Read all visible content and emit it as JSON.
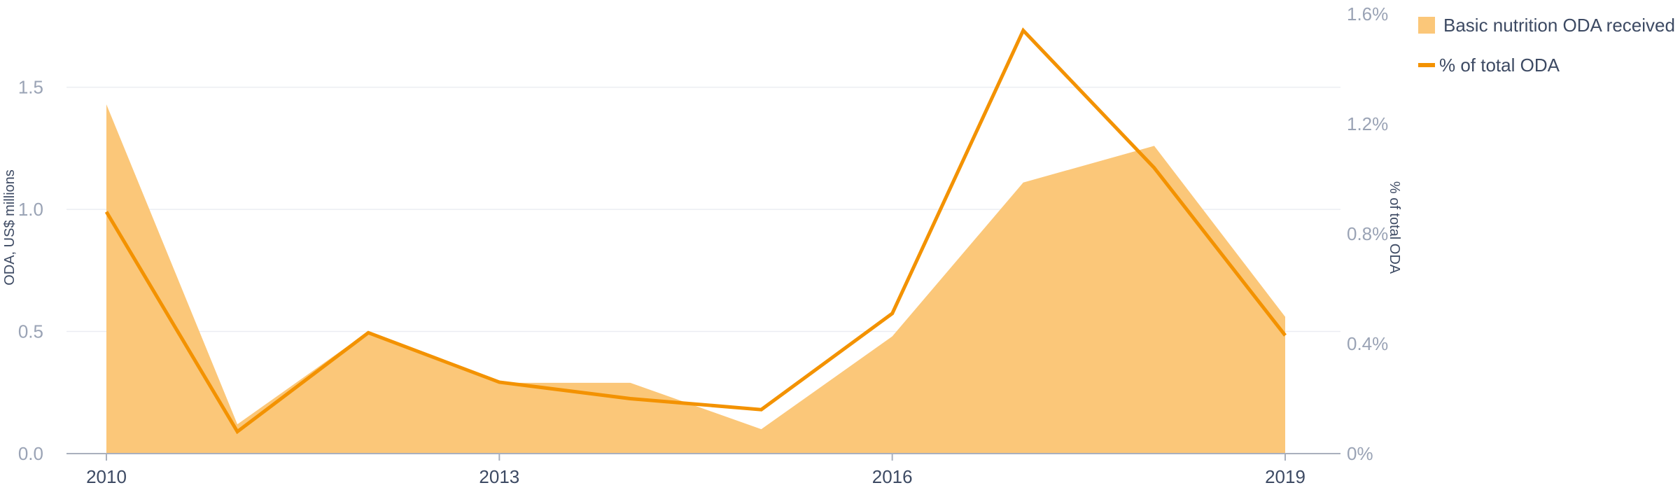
{
  "chart_data": {
    "type": "area+line",
    "x": [
      2010,
      2011,
      2012,
      2013,
      2014,
      2015,
      2016,
      2017,
      2018,
      2019
    ],
    "series": [
      {
        "name": "Basic nutrition ODA received",
        "kind": "area",
        "axis": "left",
        "color": "#fbc779",
        "values": [
          1.43,
          0.12,
          0.5,
          0.29,
          0.29,
          0.1,
          0.48,
          1.11,
          1.26,
          0.56
        ]
      },
      {
        "name": "% of total ODA",
        "kind": "line",
        "axis": "right",
        "color": "#f39200",
        "values": [
          0.88,
          0.08,
          0.44,
          0.26,
          0.2,
          0.16,
          0.51,
          1.54,
          1.04,
          0.43
        ]
      }
    ],
    "y_left": {
      "label": "ODA, US$ millions",
      "lim": [
        0,
        1.8
      ],
      "ticks": [
        0.0,
        0.5,
        1.0,
        1.5
      ],
      "tick_labels": [
        "0.0",
        "0.5",
        "1.0",
        "1.5"
      ]
    },
    "y_right": {
      "label": "% of total ODA",
      "lim": [
        0,
        1.6
      ],
      "ticks": [
        0,
        0.4,
        0.8,
        1.2,
        1.6
      ],
      "tick_labels": [
        "0%",
        "0.4%",
        "0.8%",
        "1.2%",
        "1.6%"
      ]
    },
    "x_ticks": [
      2010,
      2013,
      2016,
      2019
    ],
    "x_tick_labels": [
      "2010",
      "2013",
      "2016",
      "2019"
    ],
    "grid": true,
    "legend_position": "top-right"
  }
}
